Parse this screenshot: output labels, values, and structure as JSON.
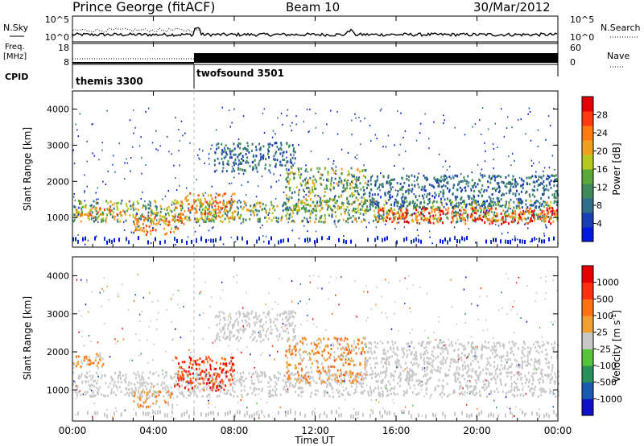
{
  "header": {
    "title": "Prince George (fitACF)",
    "beam": "Beam 10",
    "date": "30/Mar/2012"
  },
  "summary_panel": {
    "left_labels": {
      "nsky": "N.Sky",
      "freq_line1": "Freq.",
      "freq_line2": "[MHz]",
      "cpid": "CPID"
    },
    "right_labels": {
      "nsearch": "N.Search",
      "nave": "Nave"
    },
    "noise_ticks_left": [
      "10^5",
      "10^0"
    ],
    "noise_ticks_right": [
      "10^5",
      "10^0"
    ],
    "freq_ticks": [
      "18",
      "8"
    ],
    "nave_ticks": [
      "60",
      "0"
    ],
    "cpid_segments": [
      {
        "label": "themis 3300",
        "start_hour": 0,
        "end_hour": 6
      },
      {
        "label": "twofsound 3501",
        "start_hour": 6,
        "end_hour": 24
      }
    ]
  },
  "colorbars": {
    "power": {
      "label": "Power [dB]",
      "ticks": [
        "28",
        "24",
        "20",
        "16",
        "12",
        "8",
        "4"
      ],
      "colors": [
        "#0018e0",
        "#1a3fb5",
        "#2f6d8a",
        "#3f8a5a",
        "#5aa83a",
        "#b5c81e",
        "#f0a01e",
        "#ff7a10",
        "#ff3a10",
        "#e40000"
      ]
    },
    "velocity": {
      "label_main": "Velocity  [m s",
      "label_sup": "-1",
      "label_end": "]",
      "ticks": [
        "1000",
        "500",
        "100",
        "25",
        "-25",
        "-100",
        "-500",
        "-1000"
      ],
      "colors": [
        "#1010c8",
        "#1a5ab0",
        "#2a8f5a",
        "#56c43a",
        "#c8c8c8",
        "#f0a030",
        "#ff7010",
        "#ff3010",
        "#e80000"
      ]
    }
  },
  "chart_data": [
    {
      "type": "heatmap",
      "name": "power",
      "ylabel": "Slant Range [km]",
      "xlim": [
        0,
        24
      ],
      "ylim": [
        180,
        4500
      ],
      "yticks": [
        "1000",
        "2000",
        "3000",
        "4000"
      ],
      "regions": [
        {
          "t0": 0.0,
          "t1": 24.0,
          "r0": 900,
          "r1": 1500,
          "level": "mid"
        },
        {
          "t0": 0.0,
          "t1": 2.5,
          "r0": 1050,
          "r1": 1300,
          "level": "high"
        },
        {
          "t0": 3.0,
          "t1": 5.5,
          "r0": 550,
          "r1": 1100,
          "level": "high"
        },
        {
          "t0": 5.0,
          "t1": 8.0,
          "r0": 950,
          "r1": 1700,
          "level": "high"
        },
        {
          "t0": 10.5,
          "t1": 14.5,
          "r0": 1200,
          "r1": 2400,
          "level": "mid"
        },
        {
          "t0": 15.0,
          "t1": 24.0,
          "r0": 850,
          "r1": 1300,
          "level": "veryhigh"
        },
        {
          "t0": 14.5,
          "t1": 24.0,
          "r0": 1300,
          "r1": 2200,
          "level": "low"
        },
        {
          "t0": 7.0,
          "t1": 11.0,
          "r0": 2300,
          "r1": 3100,
          "level": "low"
        }
      ]
    },
    {
      "type": "heatmap",
      "name": "velocity",
      "xlabel": "Time UT",
      "ylabel": "Slant Range [km]",
      "xlim": [
        0,
        24
      ],
      "ylim": [
        180,
        4500
      ],
      "yticks": [
        "1000",
        "2000",
        "3000",
        "4000"
      ],
      "xticks": [
        "00:00",
        "04:00",
        "08:00",
        "12:00",
        "16:00",
        "20:00",
        "00:00"
      ],
      "regions": [
        {
          "t0": 0.0,
          "t1": 24.0,
          "r0": 850,
          "r1": 1500,
          "level": "ground"
        },
        {
          "t0": 0.0,
          "t1": 1.5,
          "r0": 1600,
          "r1": 2000,
          "level": "neg"
        },
        {
          "t0": 3.0,
          "t1": 5.0,
          "r0": 550,
          "r1": 1000,
          "level": "neg"
        },
        {
          "t0": 5.0,
          "t1": 8.0,
          "r0": 1000,
          "r1": 1900,
          "level": "strongneg"
        },
        {
          "t0": 10.5,
          "t1": 14.5,
          "r0": 1200,
          "r1": 2400,
          "level": "neg"
        },
        {
          "t0": 7.0,
          "t1": 11.0,
          "r0": 2300,
          "r1": 3100,
          "level": "ground"
        },
        {
          "t0": 14.5,
          "t1": 24.0,
          "r0": 1500,
          "r1": 2300,
          "level": "ground"
        }
      ]
    }
  ]
}
